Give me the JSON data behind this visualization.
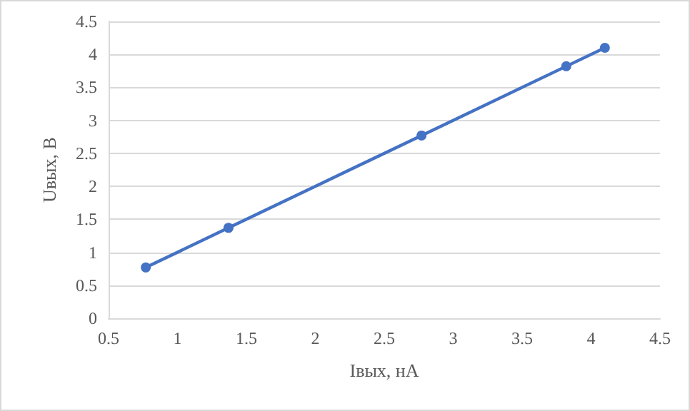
{
  "chart_data": {
    "type": "line",
    "xlabel": "Iвых, нА",
    "ylabel": "Uвых, В",
    "x": [
      0.77,
      1.37,
      2.77,
      3.82,
      4.1
    ],
    "series": [
      {
        "color": "#4472c4",
        "values": [
          0.77,
          1.37,
          2.77,
          3.82,
          4.1
        ]
      }
    ],
    "xlim": [
      0.5,
      4.5
    ],
    "xticks": [
      0.5,
      1,
      1.5,
      2,
      2.5,
      3,
      3.5,
      4,
      4.5
    ],
    "ylim": [
      0,
      4.5
    ],
    "yticks": [
      0,
      0.5,
      1,
      1.5,
      2,
      2.5,
      3,
      3.5,
      4,
      4.5
    ],
    "grid": "y",
    "marker": "circle",
    "line_style": "solid"
  }
}
